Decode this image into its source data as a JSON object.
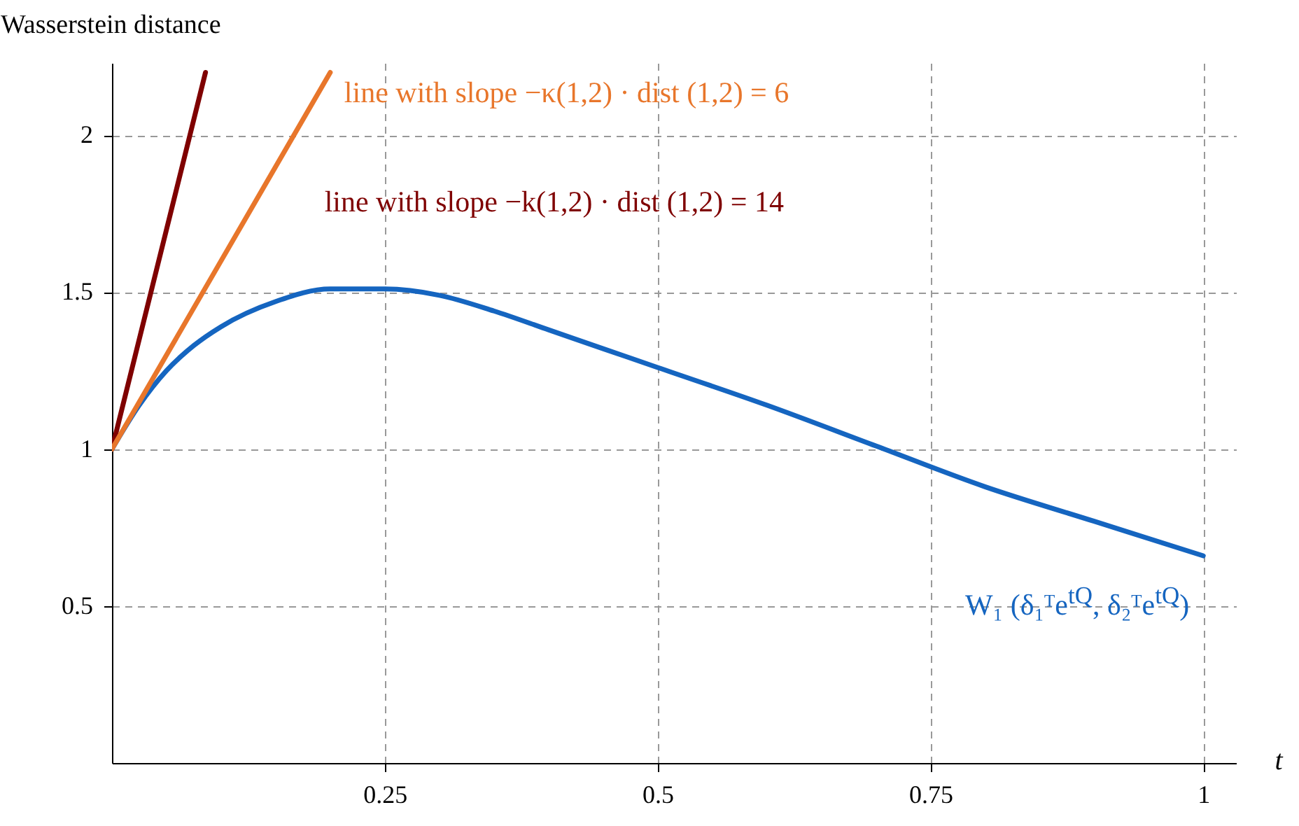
{
  "chart_data": {
    "type": "line",
    "xlabel": "t",
    "ylabel": "Wasserstein distance",
    "xlim": [
      0,
      1.03
    ],
    "ylim": [
      0,
      2.23
    ],
    "xticks": [
      0.25,
      0.5,
      0.75,
      1
    ],
    "yticks": [
      0.5,
      1,
      1.5,
      2
    ],
    "grid": true,
    "series": [
      {
        "name": "W₁ (δ₁ᵀe$^{tQ}$, δ₂ᵀe$^{tQ}$)",
        "color": "#1565c0",
        "x": [
          0,
          0.025,
          0.05,
          0.075,
          0.1,
          0.15,
          0.2,
          0.25,
          0.3,
          0.35,
          0.4,
          0.45,
          0.5,
          0.6,
          0.7,
          0.8,
          0.9,
          1
        ],
        "values": [
          1,
          1.14,
          1.25,
          1.33,
          1.39,
          1.47,
          1.51,
          1.51,
          1.49,
          1.44,
          1.38,
          1.32,
          1.26,
          1.14,
          1.01,
          0.88,
          0.77,
          0.66
        ]
      },
      {
        "name": "line with slope −k(1,2) · dist (1,2) = 14",
        "color": "#7f0000",
        "x": [
          0,
          0.0857
        ],
        "values": [
          1,
          2.2
        ]
      },
      {
        "name": "line with slope −κ(1,2) · dist (1,2) = 6",
        "color": "#e8762b",
        "x": [
          0,
          0.2
        ],
        "values": [
          1,
          2.2
        ]
      }
    ]
  }
}
